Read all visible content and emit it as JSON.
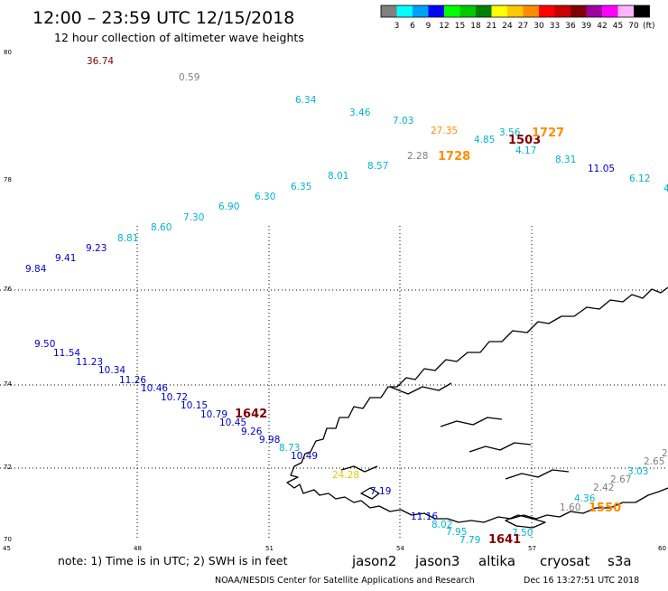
{
  "header": {
    "title": "12:00 – 23:59 UTC 12/15/2018",
    "subtitle": "12 hour collection of altimeter wave heights"
  },
  "legend": {
    "unit_label": "(ft)",
    "bins": [
      {
        "label": "3",
        "color": "#7f7f7f"
      },
      {
        "label": "6",
        "color": "#00ffff"
      },
      {
        "label": "9",
        "color": "#00a0ff"
      },
      {
        "label": "12",
        "color": "#0000ff"
      },
      {
        "label": "15",
        "color": "#00ff00"
      },
      {
        "label": "18",
        "color": "#00c800"
      },
      {
        "label": "21",
        "color": "#008000"
      },
      {
        "label": "24",
        "color": "#ffff00"
      },
      {
        "label": "27",
        "color": "#ffc800"
      },
      {
        "label": "30",
        "color": "#ff8c00"
      },
      {
        "label": "33",
        "color": "#ff0000"
      },
      {
        "label": "36",
        "color": "#c80000"
      },
      {
        "label": "39",
        "color": "#800000"
      },
      {
        "label": "42",
        "color": "#a000a0"
      },
      {
        "label": "45",
        "color": "#ff00ff"
      },
      {
        "label": "70",
        "color": "#ffb4ff"
      },
      {
        "label": "",
        "color": "#000000"
      }
    ]
  },
  "axes": {
    "lat_labels": [
      "80",
      "78",
      "76",
      "74",
      "72",
      "70"
    ],
    "lon_labels": [
      "45",
      "48",
      "51",
      "54",
      "57",
      "60"
    ]
  },
  "observations": [
    {
      "text": "36.74",
      "color": "#800000"
    },
    {
      "text": "0.59",
      "color": "#7f7f7f"
    },
    {
      "text": "6.34",
      "color": "#00b4d2"
    },
    {
      "text": "3.46",
      "color": "#00b4d2"
    },
    {
      "text": "7.03",
      "color": "#00b4d2"
    },
    {
      "text": "27.35",
      "color": "#ff8c00"
    },
    {
      "text": "3.56",
      "color": "#00b4d2"
    },
    {
      "text": "4.85",
      "color": "#00b4d2"
    },
    {
      "text": "4.17",
      "color": "#00b4d2"
    },
    {
      "text": "8.31",
      "color": "#00b4d2"
    },
    {
      "text": "11.05",
      "color": "#0000c8"
    },
    {
      "text": "6.12",
      "color": "#00b4d2"
    },
    {
      "text": "2.28",
      "color": "#7f7f7f"
    },
    {
      "text": "8.57",
      "color": "#00b4d2"
    },
    {
      "text": "8.01",
      "color": "#00b4d2"
    },
    {
      "text": "6.35",
      "color": "#00b4d2"
    },
    {
      "text": "6.30",
      "color": "#00b4d2"
    },
    {
      "text": "6.90",
      "color": "#00b4d2"
    },
    {
      "text": "7.30",
      "color": "#00b4d2"
    },
    {
      "text": "8.60",
      "color": "#00b4d2"
    },
    {
      "text": "8.81",
      "color": "#00b4d2"
    },
    {
      "text": "9.23",
      "color": "#0000c8"
    },
    {
      "text": "9.41",
      "color": "#0000c8"
    },
    {
      "text": "9.84",
      "color": "#0000c8"
    },
    {
      "text": "9.50",
      "color": "#0000c8"
    },
    {
      "text": "11.54",
      "color": "#0000c8"
    },
    {
      "text": "11.23",
      "color": "#0000c8"
    },
    {
      "text": "10.34",
      "color": "#0000c8"
    },
    {
      "text": "11.26",
      "color": "#0000c8"
    },
    {
      "text": "10.46",
      "color": "#0000c8"
    },
    {
      "text": "10.72",
      "color": "#0000c8"
    },
    {
      "text": "10.15",
      "color": "#0000c8"
    },
    {
      "text": "10.79",
      "color": "#0000c8"
    },
    {
      "text": "10.45",
      "color": "#0000c8"
    },
    {
      "text": "9.26",
      "color": "#0000c8"
    },
    {
      "text": "9.98",
      "color": "#0000c8"
    },
    {
      "text": "8.73",
      "color": "#00b4d2"
    },
    {
      "text": "10.49",
      "color": "#0000c8"
    },
    {
      "text": "24.28",
      "color": "#e6c800"
    },
    {
      "text": "7.19",
      "color": "#0000c8"
    },
    {
      "text": "11.16",
      "color": "#0000c8"
    },
    {
      "text": "8.02",
      "color": "#00b4d2"
    },
    {
      "text": "7.95",
      "color": "#00b4d2"
    },
    {
      "text": "7.79",
      "color": "#00b4d2"
    },
    {
      "text": "7.50",
      "color": "#00b4d2"
    },
    {
      "text": "1.60",
      "color": "#7f7f7f"
    },
    {
      "text": "4.36",
      "color": "#00b4d2"
    },
    {
      "text": "2.42",
      "color": "#7f7f7f"
    },
    {
      "text": "2.67",
      "color": "#7f7f7f"
    },
    {
      "text": "3.03",
      "color": "#00b4d2"
    },
    {
      "text": "2.65",
      "color": "#7f7f7f"
    },
    {
      "text": "2",
      "color": "#7f7f7f"
    },
    {
      "text": "4",
      "color": "#00b4d2"
    }
  ],
  "pass_times": [
    {
      "text": "1503",
      "color": "#800000"
    },
    {
      "text": "1727",
      "color": "#ff8c00"
    },
    {
      "text": "1728",
      "color": "#ff8c00"
    },
    {
      "text": "1642",
      "color": "#800000"
    },
    {
      "text": "1641",
      "color": "#800000"
    },
    {
      "text": "1550",
      "color": "#ff8c00"
    }
  ],
  "footer": {
    "note": "note: 1) Time is in UTC; 2) SWH is in feet",
    "satellites": [
      {
        "name": "jason2",
        "color": "#0000cc"
      },
      {
        "name": "jason3",
        "color": "#00a000"
      },
      {
        "name": "altika",
        "color": "#ff8c00"
      },
      {
        "name": "cryosat",
        "color": "#e00000"
      },
      {
        "name": "s3a",
        "color": "#800000"
      }
    ],
    "credit": "NOAA/NESDIS Center for Satellite Applications and Research",
    "timestamp": "Dec 16 13:27:51 UTC 2018"
  }
}
